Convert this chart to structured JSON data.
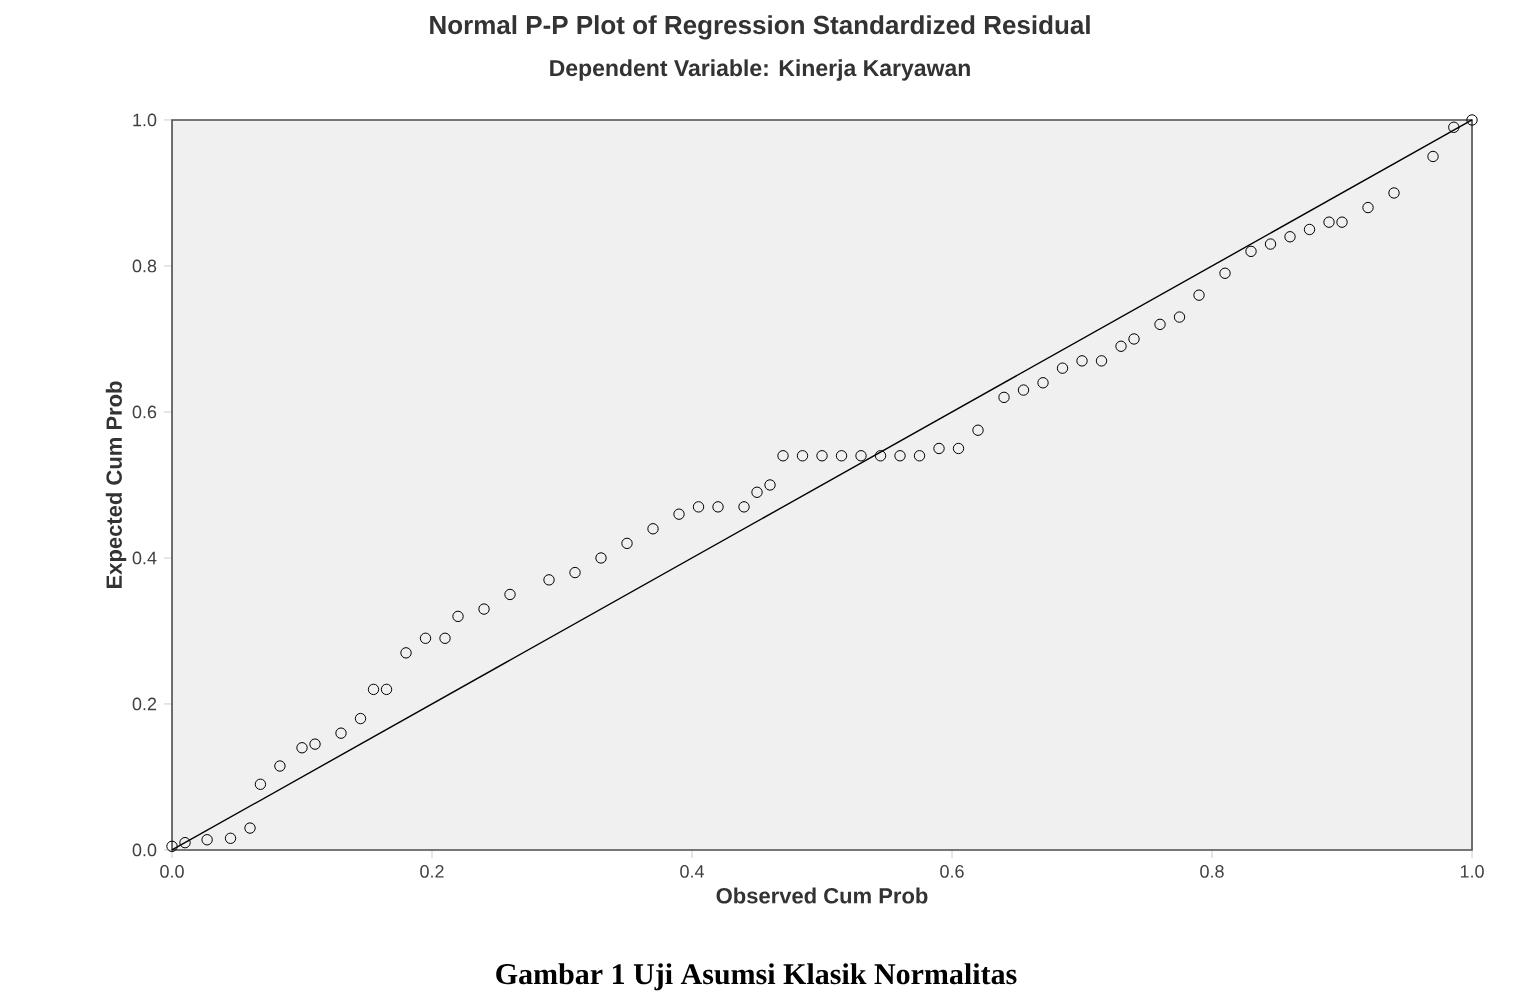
{
  "chart_data": {
    "type": "scatter",
    "title": "Normal P-P Plot of Regression Standardized Residual",
    "subtitle": "Dependent Variable: Kinerja Karyawan",
    "xlabel": "Observed Cum Prob",
    "ylabel": "Expected Cum Prob",
    "annotations": [
      "Gambar 1 Uji Asumsi Klasik Normalitas"
    ],
    "xlim": [
      0,
      1
    ],
    "ylim": [
      0,
      1
    ],
    "xticks": [
      {
        "value": 0,
        "label": "0.0"
      },
      0.2,
      0.4,
      0.6,
      0.8,
      {
        "value": 1,
        "label": "1.0"
      }
    ],
    "yticks": [
      {
        "value": 0,
        "label": "0.0"
      },
      0.2,
      0.4,
      0.6,
      0.8,
      {
        "value": 1,
        "label": "1.0"
      }
    ],
    "grid": false,
    "series": [
      {
        "color": "#000000",
        "marker": "circle",
        "x": [
          0.0,
          0.01,
          0.027,
          0.045,
          0.06,
          0.068,
          0.083,
          0.1,
          0.11,
          0.13,
          0.145,
          0.155,
          0.165,
          0.18,
          0.195,
          0.21,
          0.22,
          0.24,
          0.26,
          0.29,
          0.31,
          0.33,
          0.35,
          0.37,
          0.39,
          0.405,
          0.42,
          0.44,
          0.45,
          0.46,
          0.47,
          0.485,
          0.5,
          0.515,
          0.53,
          0.545,
          0.56,
          0.575,
          0.59,
          0.605,
          0.62,
          0.64,
          0.655,
          0.67,
          0.685,
          0.7,
          0.715,
          0.73,
          0.74,
          0.76,
          0.775,
          0.79,
          0.81,
          0.83,
          0.845,
          0.86,
          0.875,
          0.89,
          0.9,
          0.92,
          0.94,
          0.97,
          0.986,
          1.0
        ],
        "values": [
          0.005,
          0.01,
          0.014,
          0.016,
          0.03,
          0.09,
          0.115,
          0.14,
          0.145,
          0.16,
          0.18,
          0.22,
          0.22,
          0.27,
          0.29,
          0.29,
          0.32,
          0.33,
          0.35,
          0.37,
          0.38,
          0.4,
          0.42,
          0.44,
          0.46,
          0.47,
          0.47,
          0.47,
          0.49,
          0.5,
          0.54,
          0.54,
          0.54,
          0.54,
          0.54,
          0.54,
          0.54,
          0.54,
          0.55,
          0.55,
          0.575,
          0.62,
          0.63,
          0.64,
          0.66,
          0.67,
          0.67,
          0.69,
          0.7,
          0.72,
          0.73,
          0.76,
          0.79,
          0.82,
          0.83,
          0.84,
          0.85,
          0.86,
          0.86,
          0.88,
          0.9,
          0.95,
          0.99,
          1.0
        ]
      },
      {
        "type": "line",
        "color": "#000000",
        "marker": "none",
        "line_style": "solid",
        "x": [
          0,
          1
        ],
        "values": [
          0,
          1
        ]
      }
    ]
  }
}
